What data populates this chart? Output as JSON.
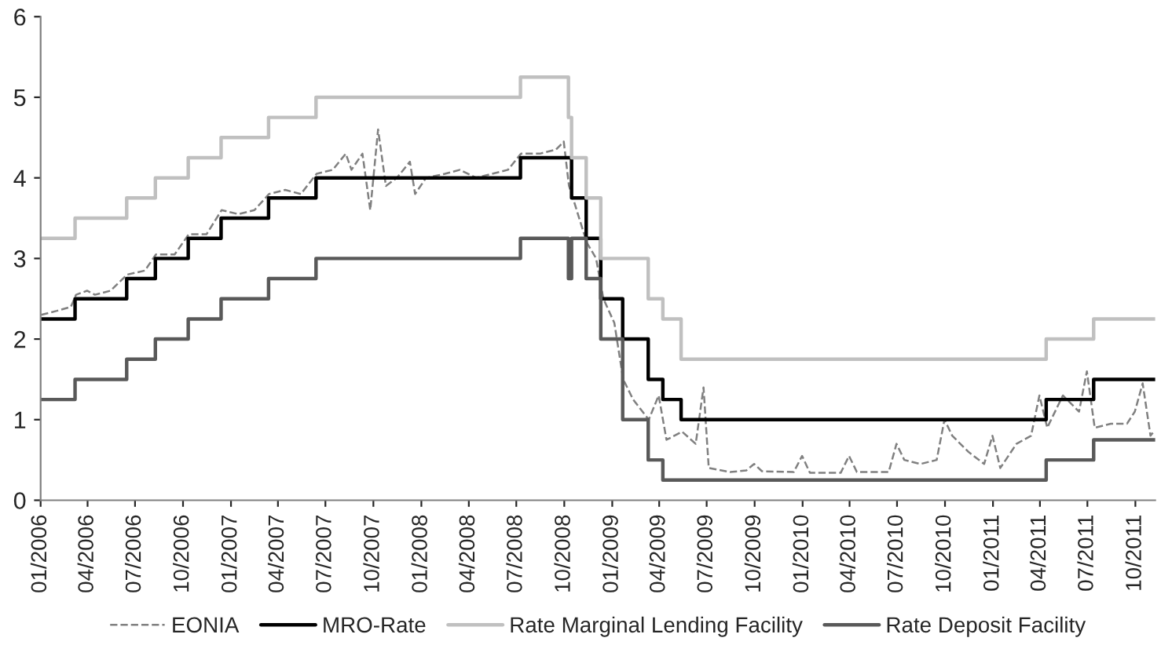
{
  "chart_data": {
    "type": "step",
    "xlim": [
      "2006-01-01",
      "2011-11-08"
    ],
    "ylim": [
      0,
      6
    ],
    "yticks": [
      0,
      1,
      2,
      3,
      4,
      5,
      6
    ],
    "xticks": [
      {
        "value": "2006-01-01",
        "label": "01/2006"
      },
      {
        "value": "2006-04-01",
        "label": "04/2006"
      },
      {
        "value": "2006-07-01",
        "label": "07/2006"
      },
      {
        "value": "2006-10-01",
        "label": "10/2006"
      },
      {
        "value": "2007-01-01",
        "label": "01/2007"
      },
      {
        "value": "2007-04-01",
        "label": "04/2007"
      },
      {
        "value": "2007-07-01",
        "label": "07/2007"
      },
      {
        "value": "2007-10-01",
        "label": "10/2007"
      },
      {
        "value": "2008-01-01",
        "label": "01/2008"
      },
      {
        "value": "2008-04-01",
        "label": "04/2008"
      },
      {
        "value": "2008-07-01",
        "label": "07/2008"
      },
      {
        "value": "2008-10-01",
        "label": "10/2008"
      },
      {
        "value": "2009-01-01",
        "label": "01/2009"
      },
      {
        "value": "2009-04-01",
        "label": "04/2009"
      },
      {
        "value": "2009-07-01",
        "label": "07/2009"
      },
      {
        "value": "2009-10-01",
        "label": "10/2009"
      },
      {
        "value": "2010-01-01",
        "label": "01/2010"
      },
      {
        "value": "2010-04-01",
        "label": "04/2010"
      },
      {
        "value": "2010-07-01",
        "label": "07/2010"
      },
      {
        "value": "2010-10-01",
        "label": "10/2010"
      },
      {
        "value": "2011-01-01",
        "label": "01/2011"
      },
      {
        "value": "2011-04-01",
        "label": "04/2011"
      },
      {
        "value": "2011-07-01",
        "label": "07/2011"
      },
      {
        "value": "2011-10-01",
        "label": "10/2011"
      }
    ],
    "grid": false,
    "legend": "bottom",
    "series": [
      {
        "name": "EONIA",
        "type": "line",
        "line_style": "dashed",
        "color": "#808080",
        "x": [
          "2006-01-02",
          "2006-02-01",
          "2006-02-28",
          "2006-03-10",
          "2006-03-31",
          "2006-04-15",
          "2006-05-15",
          "2006-06-16",
          "2006-07-20",
          "2006-08-10",
          "2006-09-15",
          "2006-10-12",
          "2006-11-15",
          "2006-12-14",
          "2007-01-15",
          "2007-02-15",
          "2007-03-15",
          "2007-04-15",
          "2007-05-15",
          "2007-06-14",
          "2007-07-15",
          "2007-08-09",
          "2007-08-20",
          "2007-09-10",
          "2007-09-25",
          "2007-10-10",
          "2007-10-25",
          "2007-11-15",
          "2007-12-10",
          "2007-12-20",
          "2008-01-10",
          "2008-02-15",
          "2008-03-15",
          "2008-04-15",
          "2008-05-15",
          "2008-06-15",
          "2008-07-10",
          "2008-08-15",
          "2008-09-15",
          "2008-09-30",
          "2008-10-10",
          "2008-10-20",
          "2008-11-13",
          "2008-12-01",
          "2008-12-15",
          "2009-01-05",
          "2009-01-22",
          "2009-02-10",
          "2009-03-12",
          "2009-03-31",
          "2009-04-15",
          "2009-05-15",
          "2009-06-10",
          "2009-06-25",
          "2009-07-05",
          "2009-08-15",
          "2009-09-15",
          "2009-09-30",
          "2009-10-15",
          "2009-12-15",
          "2009-12-31",
          "2010-01-15",
          "2010-03-15",
          "2010-03-31",
          "2010-04-15",
          "2010-06-15",
          "2010-06-30",
          "2010-07-15",
          "2010-08-15",
          "2010-09-15",
          "2010-09-30",
          "2010-10-15",
          "2010-11-15",
          "2010-12-15",
          "2010-12-31",
          "2011-01-15",
          "2011-02-15",
          "2011-03-15",
          "2011-03-31",
          "2011-04-15",
          "2011-05-15",
          "2011-06-15",
          "2011-06-30",
          "2011-07-15",
          "2011-08-15",
          "2011-09-15",
          "2011-09-30",
          "2011-10-15",
          "2011-10-30",
          "2011-11-05"
        ],
        "values": [
          2.3,
          2.35,
          2.4,
          2.55,
          2.6,
          2.55,
          2.6,
          2.8,
          2.85,
          3.05,
          3.05,
          3.3,
          3.3,
          3.6,
          3.55,
          3.6,
          3.8,
          3.85,
          3.8,
          4.05,
          4.1,
          4.3,
          4.1,
          4.3,
          3.6,
          4.6,
          3.9,
          4.0,
          4.2,
          3.8,
          4.0,
          4.05,
          4.1,
          4.0,
          4.05,
          4.1,
          4.3,
          4.3,
          4.35,
          4.45,
          3.9,
          3.7,
          3.2,
          3.0,
          2.5,
          2.2,
          1.5,
          1.25,
          1.0,
          1.3,
          0.75,
          0.85,
          0.7,
          1.4,
          0.4,
          0.35,
          0.37,
          0.45,
          0.36,
          0.35,
          0.55,
          0.34,
          0.34,
          0.55,
          0.35,
          0.35,
          0.7,
          0.5,
          0.45,
          0.5,
          1.0,
          0.8,
          0.6,
          0.45,
          0.8,
          0.4,
          0.7,
          0.8,
          1.3,
          0.9,
          1.3,
          1.1,
          1.6,
          0.9,
          0.95,
          0.95,
          1.1,
          1.45,
          0.8,
          0.85
        ]
      },
      {
        "name": "MRO-Rate",
        "color": "#000000",
        "x": [
          "2006-01-01",
          "2006-03-08",
          "2006-06-15",
          "2006-08-09",
          "2006-10-11",
          "2006-12-13",
          "2007-03-14",
          "2007-06-13",
          "2008-07-09",
          "2008-10-15",
          "2008-11-12",
          "2008-12-10",
          "2009-01-21",
          "2009-03-11",
          "2009-04-08",
          "2009-05-13",
          "2011-04-13",
          "2011-07-13",
          "2011-11-08"
        ],
        "values": [
          2.25,
          2.5,
          2.75,
          3.0,
          3.25,
          3.5,
          3.75,
          4.0,
          4.25,
          3.75,
          3.25,
          2.5,
          2.0,
          1.5,
          1.25,
          1.0,
          1.25,
          1.5,
          1.5
        ]
      },
      {
        "name": "Rate Marginal Lending Facility",
        "color": "#c0c0c0",
        "x": [
          "2006-01-01",
          "2006-03-08",
          "2006-06-15",
          "2006-08-09",
          "2006-10-11",
          "2006-12-13",
          "2007-03-14",
          "2007-06-13",
          "2008-07-09",
          "2008-10-09",
          "2008-10-15",
          "2008-11-12",
          "2008-12-10",
          "2009-01-21",
          "2009-03-11",
          "2009-04-08",
          "2009-05-13",
          "2011-04-13",
          "2011-07-13",
          "2011-11-08"
        ],
        "values": [
          3.25,
          3.5,
          3.75,
          4.0,
          4.25,
          4.5,
          4.75,
          5.0,
          5.25,
          4.75,
          4.25,
          3.75,
          3.0,
          3.0,
          2.5,
          2.25,
          1.75,
          2.0,
          2.25,
          2.25
        ]
      },
      {
        "name": "Rate Deposit Facility",
        "color": "#595959",
        "x": [
          "2006-01-01",
          "2006-03-08",
          "2006-06-15",
          "2006-08-09",
          "2006-10-11",
          "2006-12-13",
          "2007-03-14",
          "2007-06-13",
          "2008-07-09",
          "2008-10-09",
          "2008-10-15",
          "2008-11-12",
          "2008-12-10",
          "2009-01-21",
          "2009-03-11",
          "2009-04-08",
          "2011-04-13",
          "2011-07-13",
          "2011-11-08"
        ],
        "values": [
          1.25,
          1.5,
          1.75,
          2.0,
          2.25,
          2.5,
          2.75,
          3.0,
          3.25,
          2.75,
          3.25,
          2.75,
          2.0,
          1.0,
          0.5,
          0.25,
          0.5,
          0.75,
          0.75
        ]
      }
    ]
  }
}
